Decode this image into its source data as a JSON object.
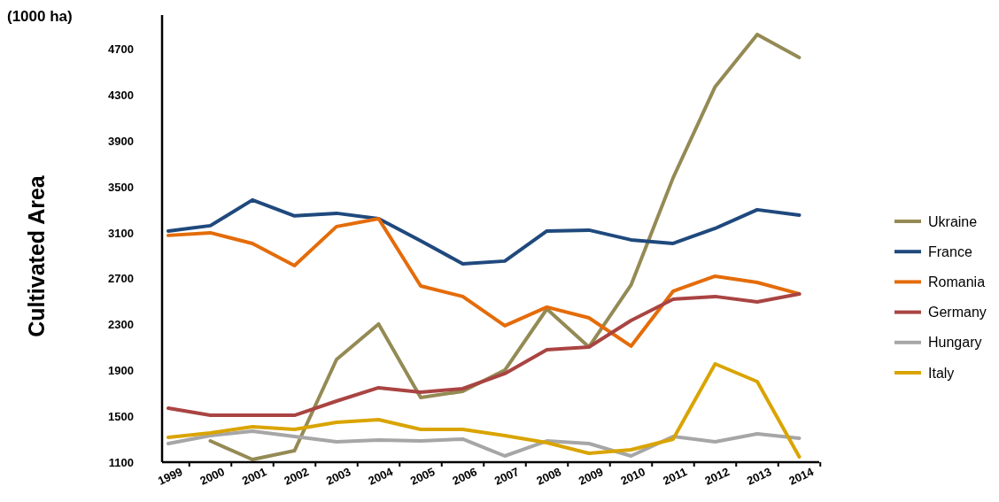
{
  "chart_data": {
    "type": "line",
    "ylabel": "Cultivated Area",
    "annotations": [
      "(1000 ha)"
    ],
    "categories": [
      "1999",
      "2000",
      "2001",
      "2002",
      "2003",
      "2004",
      "2005",
      "2006",
      "2007",
      "2008",
      "2009",
      "2010",
      "2011",
      "2012",
      "2013",
      "2014"
    ],
    "series": [
      {
        "name": "Ukraine",
        "color": "#948a54",
        "values": [
          null,
          1285,
          1123,
          1200,
          1996,
          2305,
          1664,
          1718,
          1903,
          2436,
          2104,
          2645,
          3580,
          4375,
          4831,
          4630
        ]
      },
      {
        "name": "France",
        "color": "#1f497d",
        "values": [
          3116,
          3163,
          3387,
          3248,
          3271,
          3224,
          3031,
          2830,
          2854,
          3116,
          3124,
          3039,
          3008,
          3139,
          3302,
          3255
        ]
      },
      {
        "name": "Romania",
        "color": "#e46c0a",
        "values": [
          3078,
          3101,
          3008,
          2815,
          3155,
          3224,
          2637,
          2545,
          2290,
          2452,
          2359,
          2112,
          2591,
          2722,
          2668,
          2568
        ]
      },
      {
        "name": "Germany",
        "color": "#a94442",
        "values": [
          1571,
          1509,
          1509,
          1509,
          1633,
          1749,
          1710,
          1741,
          1873,
          2081,
          2104,
          2336,
          2521,
          2545,
          2498,
          2568
        ]
      },
      {
        "name": "Hungary",
        "color": "#a6a6a6",
        "values": [
          1262,
          1332,
          1370,
          1324,
          1278,
          1293,
          1285,
          1301,
          1154,
          1285,
          1262,
          1154,
          1324,
          1278,
          1347,
          1309
        ]
      },
      {
        "name": "Italy",
        "color": "#d9a400",
        "values": [
          1316,
          1355,
          1409,
          1386,
          1448,
          1471,
          1386,
          1386,
          1332,
          1270,
          1177,
          1208,
          1301,
          1957,
          1803,
          1146
        ]
      }
    ],
    "ylim": [
      1100,
      5000
    ],
    "yticks": [
      1100,
      1500,
      1900,
      2300,
      2700,
      3100,
      3500,
      3900,
      4300,
      4700
    ],
    "legend": "right",
    "marker": "none",
    "line_style": "solid"
  }
}
